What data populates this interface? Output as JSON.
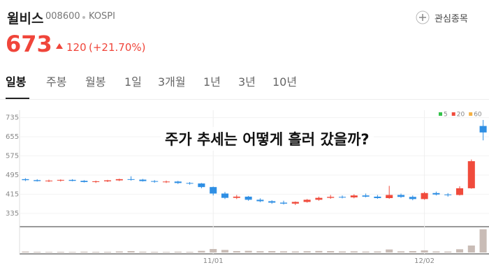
{
  "header": {
    "name": "윌비스",
    "code": "008600",
    "market": "KOSPI",
    "watch": "관심종목",
    "price": "673",
    "change": "120",
    "change_pct": "(+21.70%)"
  },
  "tabs": [
    "일봉",
    "주봉",
    "월봉",
    "1일",
    "3개월",
    "1년",
    "3년",
    "10년"
  ],
  "chart_data": {
    "type": "candlestick",
    "title": "주가 추세는 어떻게 흘러 갔을까?",
    "categories": [
      null,
      null,
      null,
      null,
      null,
      null,
      null,
      null,
      null,
      null,
      null,
      null,
      null,
      null,
      null,
      null,
      "11/01",
      null,
      null,
      null,
      null,
      null,
      null,
      null,
      null,
      null,
      null,
      null,
      null,
      null,
      null,
      null,
      null,
      null,
      "12/02",
      null,
      null,
      null,
      null,
      null
    ],
    "open": [
      478,
      474,
      470,
      472,
      475,
      471,
      466,
      469,
      473,
      478,
      476,
      470,
      467,
      468,
      462,
      460,
      445,
      418,
      400,
      405,
      392,
      386,
      380,
      376,
      383,
      392,
      400,
      404,
      402,
      410,
      405,
      399,
      412,
      404,
      395,
      420,
      414,
      412,
      440,
      700
    ],
    "high": [
      482,
      478,
      476,
      477,
      478,
      474,
      472,
      475,
      480,
      490,
      479,
      474,
      472,
      471,
      466,
      462,
      447,
      425,
      412,
      408,
      398,
      390,
      388,
      385,
      395,
      405,
      412,
      410,
      415,
      418,
      412,
      450,
      418,
      410,
      425,
      426,
      420,
      448,
      560,
      725
    ],
    "low": [
      470,
      468,
      466,
      468,
      469,
      464,
      462,
      466,
      470,
      472,
      468,
      463,
      462,
      458,
      455,
      440,
      410,
      395,
      395,
      388,
      382,
      375,
      372,
      370,
      380,
      388,
      396,
      398,
      398,
      402,
      396,
      396,
      400,
      390,
      392,
      410,
      405,
      410,
      438,
      640
    ],
    "close": [
      474,
      470,
      472,
      475,
      471,
      466,
      469,
      473,
      478,
      476,
      470,
      467,
      468,
      462,
      460,
      445,
      418,
      400,
      405,
      392,
      386,
      380,
      376,
      383,
      392,
      400,
      404,
      402,
      410,
      405,
      399,
      412,
      404,
      395,
      420,
      414,
      412,
      440,
      553,
      673
    ],
    "volume": [
      8,
      6,
      5,
      6,
      5,
      7,
      6,
      6,
      9,
      12,
      7,
      6,
      5,
      7,
      6,
      14,
      30,
      22,
      12,
      14,
      11,
      12,
      10,
      9,
      11,
      13,
      12,
      9,
      10,
      8,
      9,
      26,
      10,
      12,
      18,
      9,
      8,
      28,
      60,
      200
    ],
    "up_color": "#f04b3c",
    "down_color": "#2f8fe4",
    "volume_color": "#c9bcb6",
    "ylim": [
      300,
      760
    ],
    "yticks": [
      735,
      655,
      575,
      495,
      415,
      335
    ],
    "vlim": [
      0,
      210
    ],
    "legend": [
      {
        "label": "5",
        "color": "#34c24a"
      },
      {
        "label": "20",
        "color": "#f04b3c"
      },
      {
        "label": "60",
        "color": "#f5b041"
      }
    ]
  }
}
